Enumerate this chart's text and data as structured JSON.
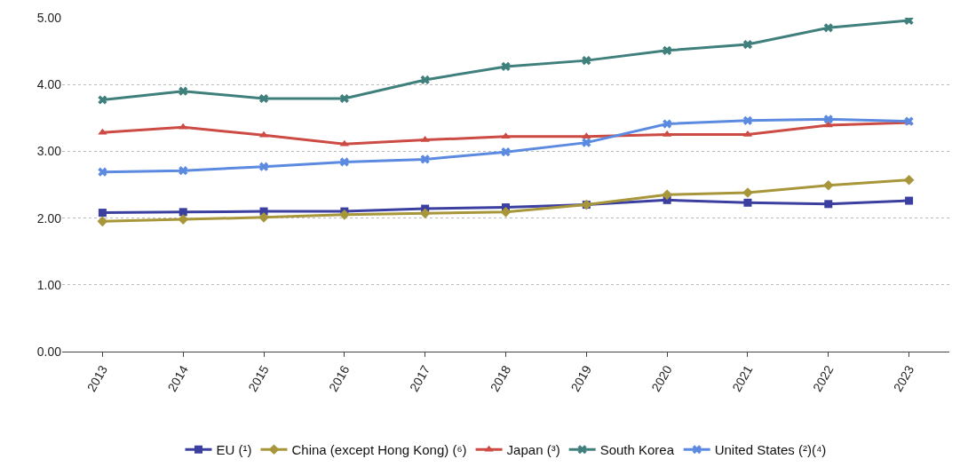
{
  "chart_data": {
    "type": "line",
    "categories": [
      "2013",
      "2014",
      "2015",
      "2016",
      "2017",
      "2018",
      "2019",
      "2020",
      "2021",
      "2022",
      "2023"
    ],
    "series": [
      {
        "name": "EU (¹)",
        "color": "#3a3fa0",
        "marker": "square",
        "values": [
          2.08,
          2.09,
          2.1,
          2.1,
          2.14,
          2.16,
          2.2,
          2.27,
          2.23,
          2.21,
          2.26
        ]
      },
      {
        "name": "China (except Hong Kong) (⁶)",
        "color": "#a8963a",
        "marker": "diamond",
        "values": [
          1.95,
          1.98,
          2.01,
          2.05,
          2.07,
          2.09,
          2.2,
          2.35,
          2.38,
          2.49,
          2.57
        ]
      },
      {
        "name": "Japan (³)",
        "color": "#cc4b44",
        "marker": "triangle",
        "values": [
          3.28,
          3.36,
          3.24,
          3.11,
          3.17,
          3.22,
          3.22,
          3.25,
          3.25,
          3.39,
          3.43
        ]
      },
      {
        "name": "South Korea",
        "color": "#3f7f7c",
        "marker": "cross",
        "values": [
          3.77,
          3.9,
          3.79,
          3.79,
          4.07,
          4.27,
          4.36,
          4.51,
          4.6,
          4.85,
          4.96
        ]
      },
      {
        "name": "United States (²)(⁴)",
        "color": "#5b8ae0",
        "marker": "cross",
        "values": [
          2.69,
          2.71,
          2.77,
          2.84,
          2.88,
          2.99,
          3.13,
          3.41,
          3.46,
          3.48,
          3.45
        ]
      }
    ],
    "ylim": [
      0,
      5
    ],
    "yticks": [
      {
        "value": 0,
        "label": "0.00"
      },
      {
        "value": 1,
        "label": "1.00"
      },
      {
        "value": 2,
        "label": "2.00"
      },
      {
        "value": 3,
        "label": "3.00"
      },
      {
        "value": 4,
        "label": "4.00"
      },
      {
        "value": 5,
        "label": "5.00"
      }
    ],
    "grid": "y",
    "legend": "bottom",
    "line_style": "solid"
  }
}
